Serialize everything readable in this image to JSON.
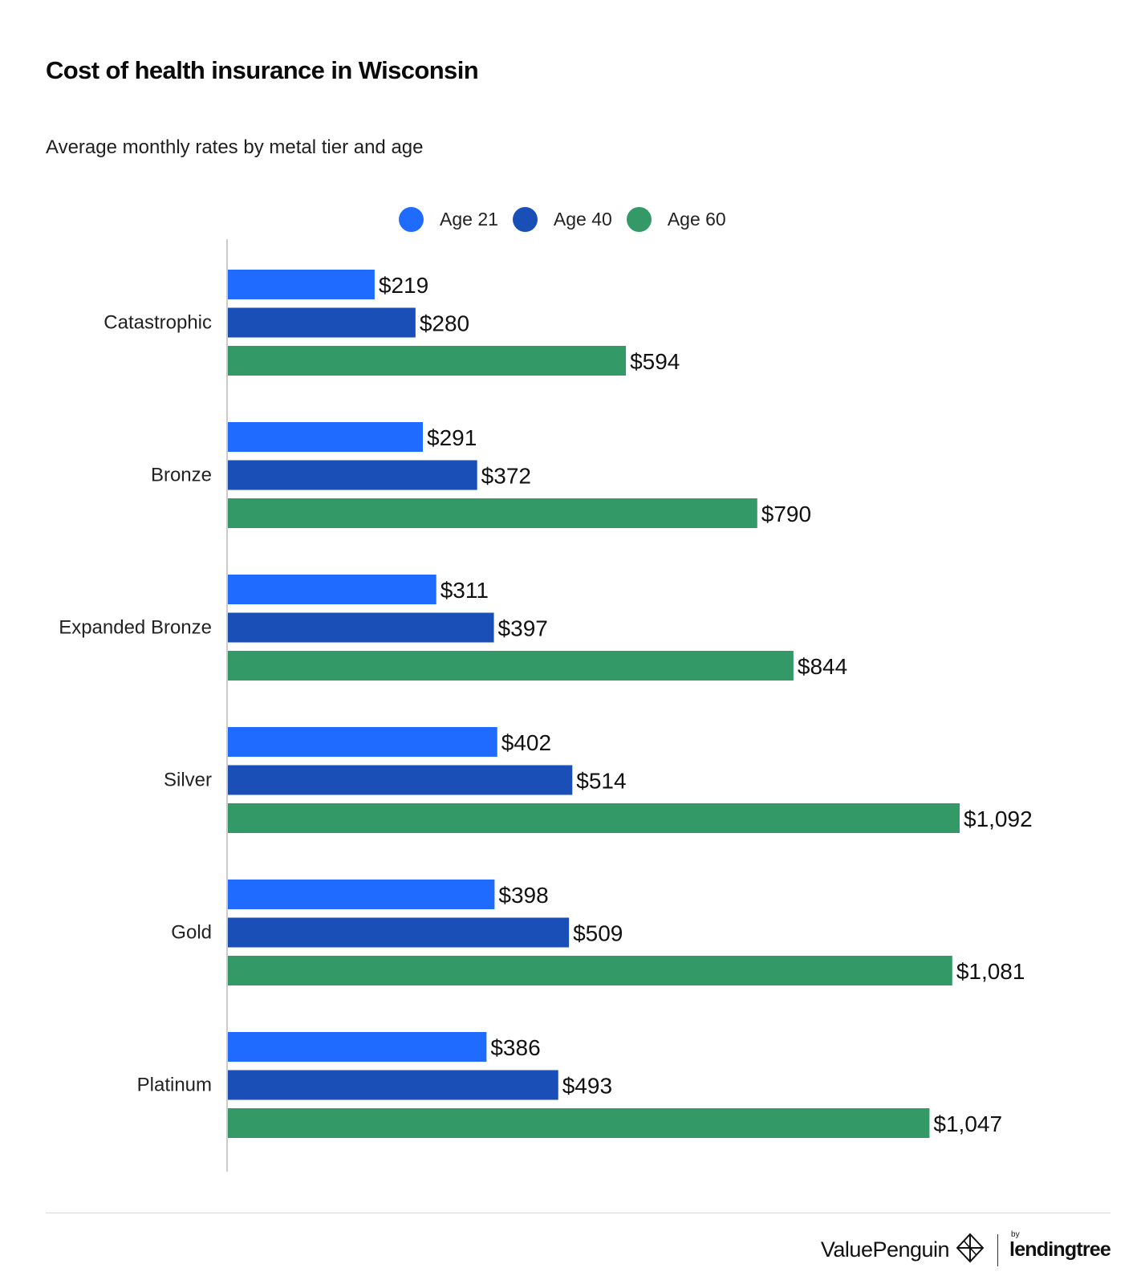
{
  "header": {
    "title": "Cost of health insurance in Wisconsin",
    "subtitle": "Average monthly rates by metal tier and age"
  },
  "legend": [
    {
      "label": "Age 21",
      "color": "#1f6bff"
    },
    {
      "label": "Age 40",
      "color": "#1a4fb8"
    },
    {
      "label": "Age 60",
      "color": "#339966"
    }
  ],
  "chart_data": {
    "type": "bar",
    "orientation": "horizontal",
    "title": "Cost of health insurance in Wisconsin",
    "subtitle": "Average monthly rates by metal tier and age",
    "categories": [
      "Catastrophic",
      "Bronze",
      "Expanded Bronze",
      "Silver",
      "Gold",
      "Platinum"
    ],
    "series": [
      {
        "name": "Age 21",
        "color": "#1f6bff",
        "values": [
          219,
          291,
          311,
          402,
          398,
          386
        ],
        "labels": [
          "$219",
          "$291",
          "$311",
          "$402",
          "$398",
          "$386"
        ]
      },
      {
        "name": "Age 40",
        "color": "#1a4fb8",
        "values": [
          280,
          372,
          397,
          514,
          509,
          493
        ],
        "labels": [
          "$280",
          "$372",
          "$397",
          "$514",
          "$509",
          "$493"
        ]
      },
      {
        "name": "Age 60",
        "color": "#339966",
        "values": [
          594,
          790,
          844,
          1092,
          1081,
          1047
        ],
        "labels": [
          "$594",
          "$790",
          "$844",
          "$1,092",
          "$1,081",
          "$1,047"
        ]
      }
    ],
    "xlim": [
      0,
      1092
    ],
    "grid": false,
    "legend_position": "top-center",
    "axis_color": "#cccccc"
  },
  "footer": {
    "brand": "ValuePenguin",
    "by": "by",
    "partner": "lendingtree"
  }
}
